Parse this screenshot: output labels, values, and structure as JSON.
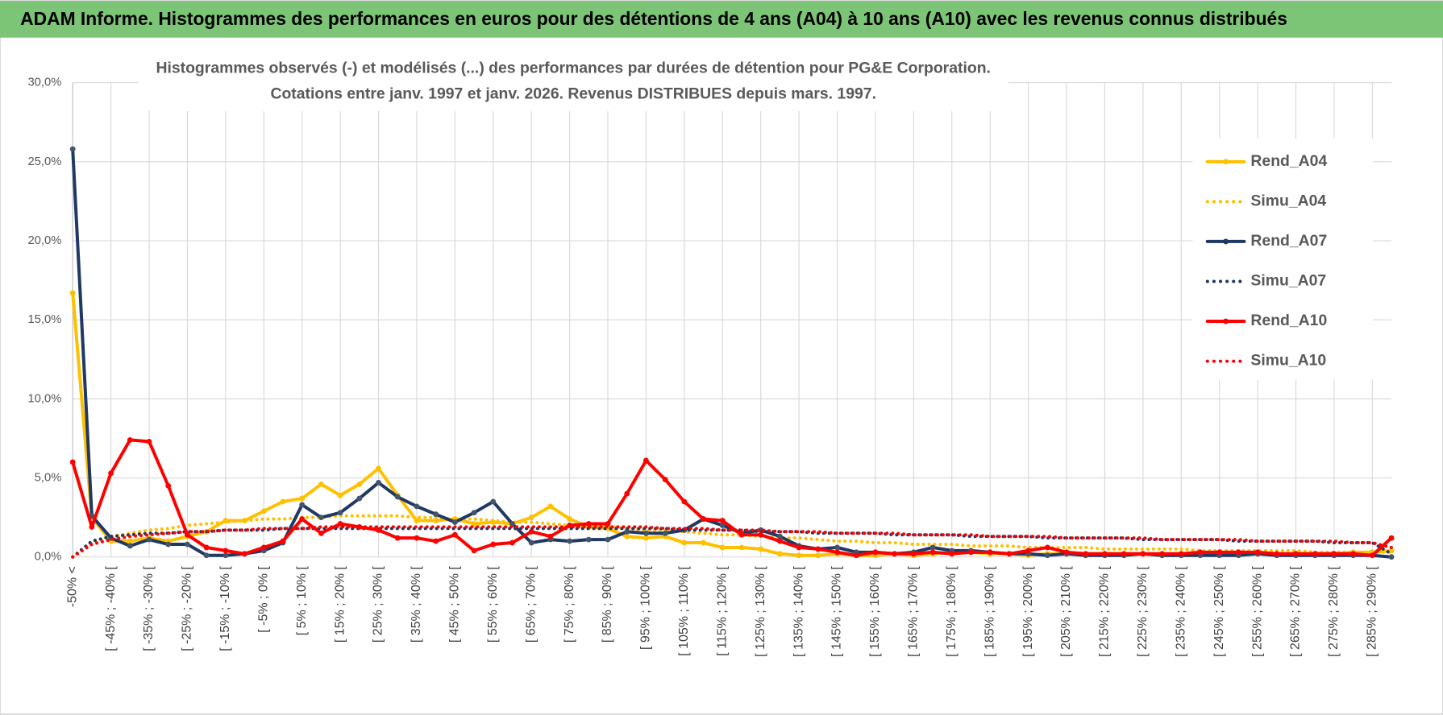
{
  "chart_data": {
    "type": "line",
    "title": "ADAM Informe. Histogrammes des performances en euros pour des détentions de 4 ans (A04) à 10 ans (A10) avec les revenus connus distribués",
    "subtitle": [
      "Histogrammes observés (-) et modélisés (...) des performances par durées de détention pour PG&E Corporation.",
      "Cotations entre janv. 1997 et janv. 2026. Revenus DISTRIBUES depuis mars. 1997."
    ],
    "categories": [
      "-50% <",
      null,
      "[ -45% ; -40% [",
      null,
      "[ -35% ; -30% [",
      null,
      "[ -25% ; -20% [",
      null,
      "[ -15% ; -10% [",
      null,
      "[ -5% ; 0% [",
      null,
      "[ 5% ; 10% [",
      null,
      "[ 15% ; 20% [",
      null,
      "[ 25% ; 30% [",
      null,
      "[ 35% ; 40% [",
      null,
      "[ 45% ; 50% [",
      null,
      "[ 55% ; 60% [",
      null,
      "[ 65% ; 70% [",
      null,
      "[ 75% ; 80% [",
      null,
      "[ 85% ; 90% [",
      null,
      "[ 95% ; 100% [",
      null,
      "[ 105% ; 110% [",
      null,
      "[ 115% ; 120% [",
      null,
      "[ 125% ; 130% [",
      null,
      "[ 135% ; 140% [",
      null,
      "[ 145% ; 150% [",
      null,
      "[ 155% ; 160% [",
      null,
      "[ 165% ; 170% [",
      null,
      "[ 175% ; 180% [",
      null,
      "[ 185% ; 190% [",
      null,
      "[ 195% ; 200% [",
      null,
      "[ 205% ; 210% [",
      null,
      "[ 215% ; 220% [",
      null,
      "[ 225% ; 230% [",
      null,
      "[ 235% ; 240% [",
      null,
      "[ 245% ; 250% [",
      null,
      "[ 255% ; 260% [",
      null,
      "[ 265% ; 270% [",
      null,
      "[ 275% ; 280% [",
      null,
      "[ 285% ; 290% [",
      null
    ],
    "series": [
      {
        "name": "Rend_A04",
        "color": "#ffc000",
        "line_style": "solid",
        "values": [
          16.7,
          2.5,
          1.0,
          1.0,
          1.2,
          1.0,
          1.3,
          1.6,
          2.3,
          2.3,
          2.9,
          3.5,
          3.7,
          4.6,
          3.9,
          4.6,
          5.6,
          3.9,
          2.3,
          2.3,
          2.4,
          2.1,
          2.2,
          2.1,
          2.5,
          3.2,
          2.4,
          1.9,
          1.8,
          1.3,
          1.2,
          1.3,
          0.9,
          0.9,
          0.6,
          0.6,
          0.5,
          0.2,
          0.1,
          0.1,
          0.2,
          0.1,
          0.1,
          0.2,
          0.1,
          0.2,
          0.3,
          0.3,
          0.2,
          0.2,
          0.1,
          0.2,
          0.2,
          0.2,
          0.2,
          0.2,
          0.2,
          0.1,
          0.2,
          0.2,
          0.2,
          0.2,
          0.2,
          0.1,
          0.2,
          0.2,
          0.2,
          0.3,
          0.3,
          0.4
        ]
      },
      {
        "name": "Simu_A04",
        "color": "#ffc000",
        "line_style": "dotted",
        "values": [
          0,
          0.9,
          1.3,
          1.5,
          1.7,
          1.8,
          2.0,
          2.1,
          2.2,
          2.3,
          2.4,
          2.4,
          2.5,
          2.5,
          2.6,
          2.6,
          2.6,
          2.6,
          2.5,
          2.5,
          2.4,
          2.4,
          2.3,
          2.2,
          2.2,
          2.1,
          2.0,
          2.0,
          1.9,
          1.8,
          1.7,
          1.7,
          1.6,
          1.5,
          1.4,
          1.4,
          1.3,
          1.2,
          1.2,
          1.1,
          1.0,
          1.0,
          0.9,
          0.9,
          0.8,
          0.8,
          0.8,
          0.7,
          0.7,
          0.7,
          0.6,
          0.6,
          0.6,
          0.6,
          0.5,
          0.5,
          0.5,
          0.5,
          0.5,
          0.4,
          0.4,
          0.4,
          0.4,
          0.4,
          0.4,
          0.3,
          0.3,
          0.3,
          0.3,
          0.3
        ]
      },
      {
        "name": "Rend_A07",
        "color": "#1f3864",
        "line_style": "solid",
        "values": [
          25.8,
          2.6,
          1.2,
          0.7,
          1.1,
          0.8,
          0.8,
          0.1,
          0.1,
          0.2,
          0.4,
          0.9,
          3.3,
          2.5,
          2.8,
          3.7,
          4.7,
          3.8,
          3.2,
          2.7,
          2.2,
          2.8,
          3.5,
          2.1,
          0.9,
          1.1,
          1.0,
          1.1,
          1.1,
          1.6,
          1.5,
          1.5,
          1.7,
          2.4,
          2.0,
          1.5,
          1.7,
          1.3,
          0.7,
          0.5,
          0.6,
          0.3,
          0.3,
          0.2,
          0.3,
          0.6,
          0.4,
          0.4,
          0.3,
          0.2,
          0.2,
          0.1,
          0.2,
          0.1,
          0.1,
          0.1,
          0.2,
          0.1,
          0.1,
          0.1,
          0.1,
          0.1,
          0.2,
          0.1,
          0.1,
          0.1,
          0.1,
          0.1,
          0.1,
          0.0
        ]
      },
      {
        "name": "Simu_A07",
        "color": "#1f3864",
        "line_style": "dotted",
        "values": [
          0,
          1.0,
          1.3,
          1.4,
          1.5,
          1.5,
          1.6,
          1.6,
          1.7,
          1.7,
          1.7,
          1.8,
          1.8,
          1.8,
          1.8,
          1.8,
          1.8,
          1.8,
          1.8,
          1.8,
          1.8,
          1.8,
          1.8,
          1.8,
          1.8,
          1.8,
          1.8,
          1.8,
          1.8,
          1.8,
          1.8,
          1.8,
          1.7,
          1.7,
          1.7,
          1.7,
          1.6,
          1.6,
          1.6,
          1.5,
          1.5,
          1.5,
          1.5,
          1.4,
          1.4,
          1.4,
          1.4,
          1.3,
          1.3,
          1.3,
          1.3,
          1.2,
          1.2,
          1.2,
          1.2,
          1.2,
          1.1,
          1.1,
          1.1,
          1.1,
          1.1,
          1.0,
          1.0,
          1.0,
          1.0,
          1.0,
          0.9,
          0.9,
          0.9,
          0.2
        ]
      },
      {
        "name": "Rend_A10",
        "color": "#ff0000",
        "line_style": "solid",
        "values": [
          6.0,
          1.9,
          5.3,
          7.4,
          7.3,
          4.5,
          1.4,
          0.6,
          0.4,
          0.2,
          0.6,
          1.0,
          2.4,
          1.5,
          2.1,
          1.9,
          1.7,
          1.2,
          1.2,
          1.0,
          1.4,
          0.4,
          0.8,
          0.9,
          1.6,
          1.3,
          2.0,
          2.1,
          2.1,
          4.0,
          6.1,
          4.9,
          3.5,
          2.4,
          2.3,
          1.4,
          1.4,
          1.0,
          0.6,
          0.5,
          0.3,
          0.1,
          0.3,
          0.2,
          0.2,
          0.3,
          0.2,
          0.3,
          0.3,
          0.2,
          0.4,
          0.6,
          0.3,
          0.2,
          0.2,
          0.2,
          0.2,
          0.2,
          0.2,
          0.3,
          0.3,
          0.3,
          0.3,
          0.2,
          0.2,
          0.2,
          0.2,
          0.2,
          0.1,
          1.2
        ]
      },
      {
        "name": "Simu_A10",
        "color": "#ff0000",
        "line_style": "dotted",
        "values": [
          0,
          0.8,
          1.1,
          1.3,
          1.4,
          1.5,
          1.6,
          1.6,
          1.7,
          1.7,
          1.8,
          1.8,
          1.8,
          1.9,
          1.9,
          1.9,
          1.9,
          1.9,
          1.9,
          1.9,
          1.9,
          1.9,
          1.9,
          1.9,
          1.9,
          1.9,
          1.9,
          1.9,
          1.9,
          1.9,
          1.9,
          1.8,
          1.8,
          1.8,
          1.7,
          1.7,
          1.7,
          1.6,
          1.6,
          1.6,
          1.5,
          1.5,
          1.5,
          1.5,
          1.4,
          1.4,
          1.4,
          1.4,
          1.3,
          1.3,
          1.3,
          1.3,
          1.2,
          1.2,
          1.2,
          1.2,
          1.2,
          1.1,
          1.1,
          1.1,
          1.1,
          1.1,
          1.0,
          1.0,
          1.0,
          1.0,
          1.0,
          0.9,
          0.9,
          0.6
        ]
      }
    ],
    "ylim": [
      0,
      30
    ],
    "yticks": [
      {
        "value": 0,
        "label": "0,0%"
      },
      {
        "value": 5,
        "label": "5,0%"
      },
      {
        "value": 10,
        "label": "10,0%"
      },
      {
        "value": 15,
        "label": "15,0%"
      },
      {
        "value": 20,
        "label": "20,0%"
      },
      {
        "value": 25,
        "label": "25,0%"
      },
      {
        "value": 30,
        "label": "30,0%"
      }
    ],
    "grid": true,
    "legend": "right"
  }
}
